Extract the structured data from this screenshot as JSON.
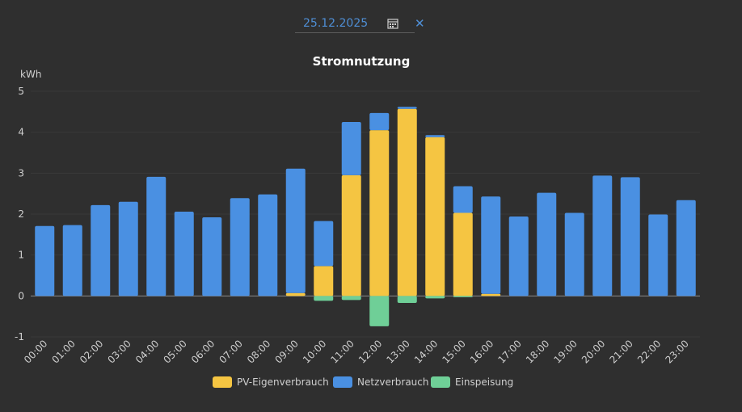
{
  "date_picker": {
    "value": "25.12.2025",
    "clear_symbol": "✕",
    "calendar_icon": "calendar-icon"
  },
  "colors": {
    "pv": "#f5c542",
    "grid": "#4a90e2",
    "feed": "#6fcf97",
    "background": "#2f2f2f",
    "gridline": "#3a3a3a",
    "axis_text": "#cfcfcf"
  },
  "chart_data": {
    "type": "bar",
    "stacked": true,
    "title": "Stromnutzung",
    "ylabel": "kWh",
    "xlabel": "",
    "ylim": [
      -1,
      5
    ],
    "yticks": [
      -1,
      0,
      1,
      2,
      3,
      4,
      5
    ],
    "legend_position": "bottom-center",
    "categories": [
      "00:00",
      "01:00",
      "02:00",
      "03:00",
      "04:00",
      "05:00",
      "06:00",
      "07:00",
      "08:00",
      "09:00",
      "10:00",
      "11:00",
      "12:00",
      "13:00",
      "14:00",
      "15:00",
      "16:00",
      "17:00",
      "18:00",
      "19:00",
      "20:00",
      "21:00",
      "22:00",
      "23:00"
    ],
    "series": [
      {
        "name": "PV-Eigenverbrauch",
        "color": "#f5c542",
        "values": [
          0,
          0,
          0,
          0,
          0,
          0,
          0,
          0,
          0,
          0.07,
          0.73,
          2.95,
          4.05,
          4.57,
          3.88,
          2.03,
          0.05,
          0,
          0,
          0,
          0,
          0,
          0,
          0
        ]
      },
      {
        "name": "Netzverbrauch",
        "color": "#4a90e2",
        "values": [
          1.71,
          1.73,
          2.22,
          2.3,
          2.91,
          2.06,
          1.92,
          2.39,
          2.48,
          3.04,
          1.1,
          1.3,
          0.42,
          0.05,
          0.05,
          0.65,
          2.38,
          1.94,
          2.52,
          2.03,
          2.94,
          2.9,
          1.99,
          2.34
        ]
      },
      {
        "name": "Einspeisung",
        "color": "#6fcf97",
        "values": [
          0,
          0,
          0,
          0,
          0,
          0,
          0,
          0,
          0,
          0,
          -0.12,
          -0.1,
          -0.74,
          -0.17,
          -0.06,
          -0.03,
          0,
          0,
          0,
          0,
          0,
          0,
          0,
          0
        ]
      }
    ]
  }
}
